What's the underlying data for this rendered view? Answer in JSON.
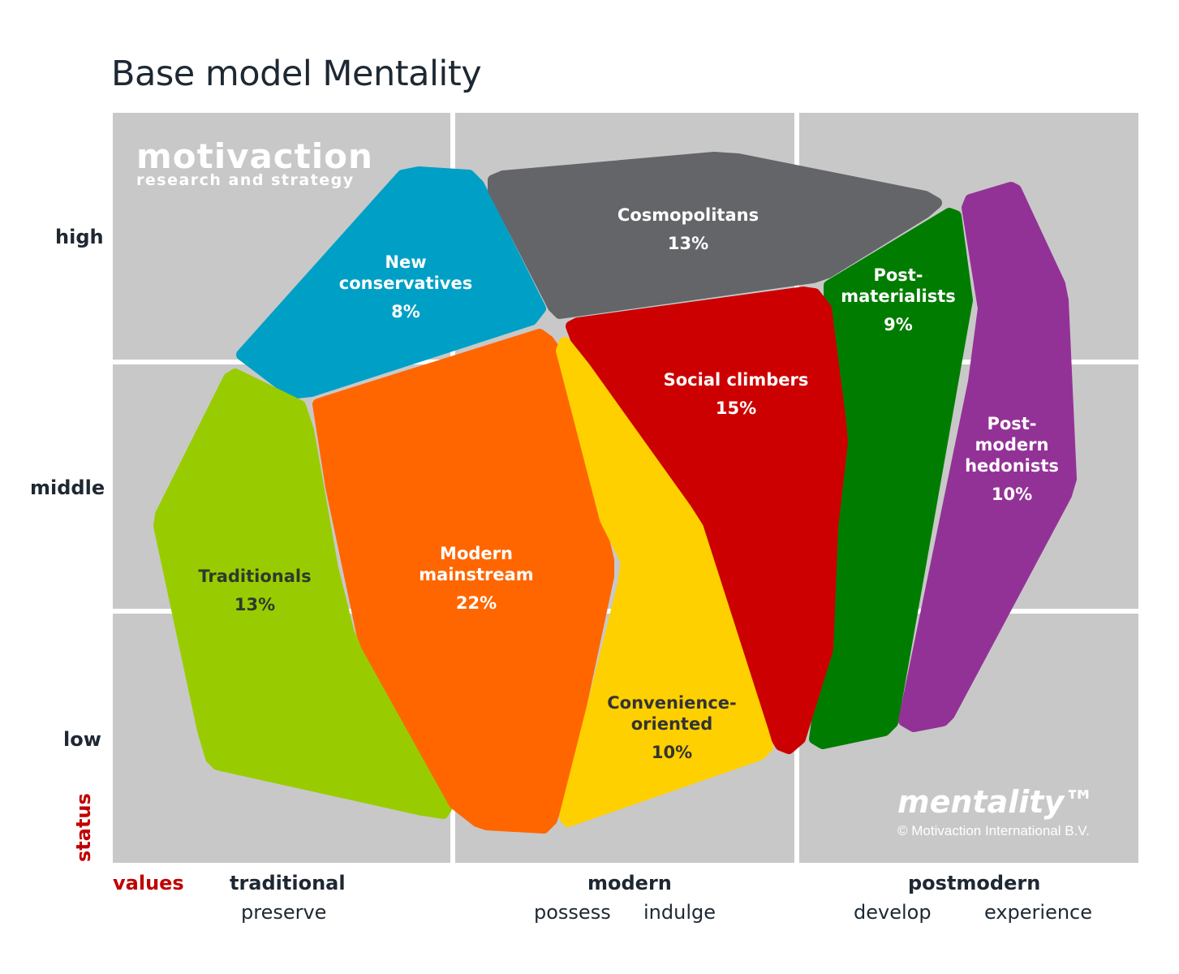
{
  "title": "Base model Mentality",
  "y_axis": {
    "name": "status",
    "levels": [
      "high",
      "middle",
      "low"
    ]
  },
  "x_axis": {
    "name": "values",
    "groups": [
      {
        "label": "traditional",
        "subs": [
          "preserve"
        ]
      },
      {
        "label": "modern",
        "subs": [
          "possess",
          "indulge"
        ]
      },
      {
        "label": "postmodern",
        "subs": [
          "develop",
          "experience"
        ]
      }
    ]
  },
  "logo": {
    "name": "motivaction",
    "tagline": "research and strategy"
  },
  "brand": {
    "name": "mentality™",
    "copyright": "© Motivaction International B.V."
  },
  "colors": {
    "grid_background": "#c8c8c8",
    "grid_lines": "#ffffff",
    "title": "#1e2833",
    "axis_name": "#c00000"
  },
  "segments": [
    {
      "name": "New conservatives",
      "lines": [
        "New",
        "conservatives"
      ],
      "share": "8%",
      "color": "#00a0c6",
      "text_color": "#ffffff"
    },
    {
      "name": "Cosmopolitans",
      "lines": [
        "Cosmopolitans"
      ],
      "share": "13%",
      "color": "#636569",
      "text_color": "#ffffff"
    },
    {
      "name": "Post-materialists",
      "lines": [
        "Post-",
        "materialists"
      ],
      "share": "9%",
      "color": "#007d00",
      "text_color": "#ffffff"
    },
    {
      "name": "Post-modern hedonists",
      "lines": [
        "Post-",
        "modern",
        "hedonists"
      ],
      "share": "10%",
      "color": "#933296",
      "text_color": "#ffffff"
    },
    {
      "name": "Social climbers",
      "lines": [
        "Social climbers"
      ],
      "share": "15%",
      "color": "#cc0000",
      "text_color": "#ffffff"
    },
    {
      "name": "Traditionals",
      "lines": [
        "Traditionals"
      ],
      "share": "13%",
      "color": "#99cc00",
      "text_color": "#2d3a2d"
    },
    {
      "name": "Modern mainstream",
      "lines": [
        "Modern",
        "mainstream"
      ],
      "share": "22%",
      "color": "#ff6600",
      "text_color": "#ffffff"
    },
    {
      "name": "Convenience-oriented",
      "lines": [
        "Convenience-",
        "oriented"
      ],
      "share": "10%",
      "color": "#ffd000",
      "text_color": "#333333"
    }
  ]
}
